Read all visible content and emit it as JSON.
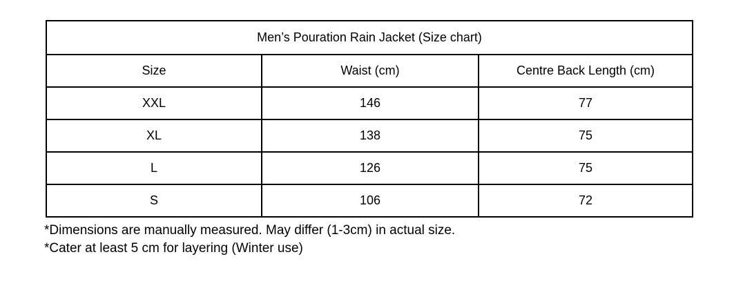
{
  "table": {
    "title": "Men’s Pouration Rain Jacket (Size chart)",
    "columns": {
      "size": "Size",
      "waist": "Waist (cm)",
      "back_length": "Centre Back Length (cm)"
    },
    "rows": [
      {
        "size": "XXL",
        "waist": "146",
        "back_length": "77"
      },
      {
        "size": "XL",
        "waist": "138",
        "back_length": "75"
      },
      {
        "size": "L",
        "waist": "126",
        "back_length": "75"
      },
      {
        "size": "S",
        "waist": "106",
        "back_length": "72"
      }
    ]
  },
  "notes": [
    "*Dimensions are manually measured. May differ (1-3cm) in actual size.",
    "*Cater at least 5 cm for layering (Winter use)"
  ],
  "colors": {
    "border": "#000000",
    "text": "#000000",
    "background": "#ffffff"
  }
}
